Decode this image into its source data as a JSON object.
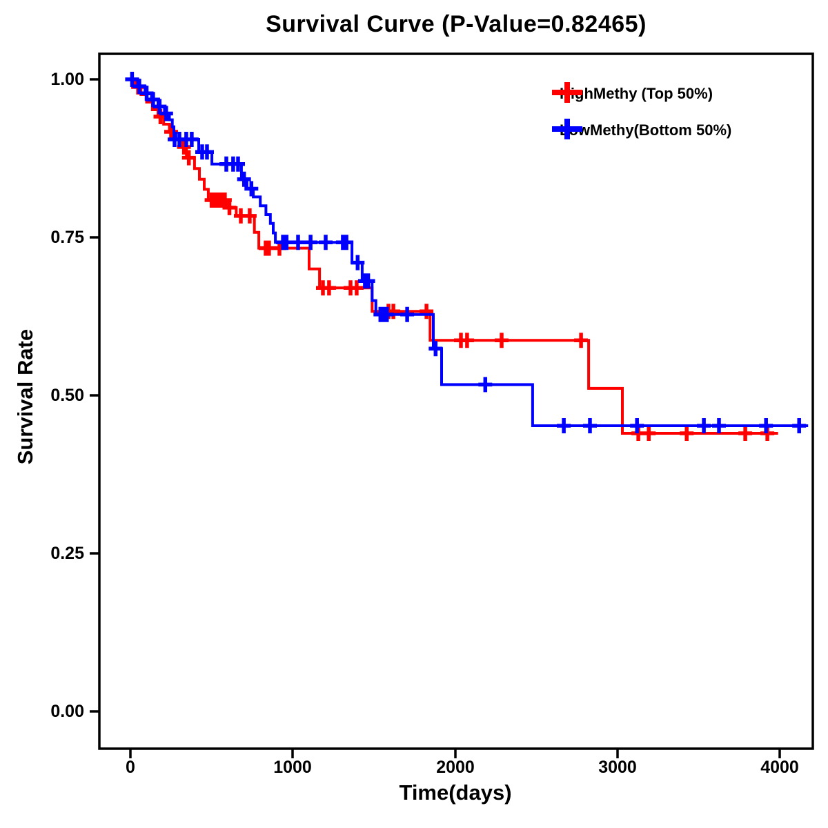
{
  "chart_data": {
    "type": "line",
    "subtype": "kaplan-meier-survival-step",
    "title": "Survival Curve (P-Value=0.82465)",
    "p_value_shown": "0.82465",
    "xlabel": "Time(days)",
    "ylabel": "Survival Rate",
    "grid": false,
    "background_color": "#ffffff",
    "axis_color": "#000000",
    "xlim": [
      -190,
      4205
    ],
    "ylim": [
      -0.06,
      1.04
    ],
    "xticks": [
      {
        "value": 0,
        "label": "0"
      },
      {
        "value": 1000,
        "label": "1000"
      },
      {
        "value": 2000,
        "label": "2000"
      },
      {
        "value": 3000,
        "label": "3000"
      },
      {
        "value": 4000,
        "label": "4000"
      }
    ],
    "yticks": [
      {
        "value": 1.0,
        "label": "1.00"
      },
      {
        "value": 0.75,
        "label": "0.75"
      },
      {
        "value": 0.5,
        "label": "0.50"
      },
      {
        "value": 0.25,
        "label": "0.25"
      },
      {
        "value": 0.0,
        "label": "0.00"
      }
    ],
    "legend": {
      "position": "top-right",
      "items": [
        {
          "label": "HighMethy (Top 50%)",
          "color": "#ff0000",
          "marker": "plus"
        },
        {
          "label": "LowMethy(Bottom 50%)",
          "color": "#0000ff",
          "marker": "plus"
        }
      ]
    },
    "series": [
      {
        "name": "HighMethy (Top 50%)",
        "color": "#ff0000",
        "steps": [
          [
            0,
            1.0
          ],
          [
            30,
            0.988
          ],
          [
            65,
            0.976
          ],
          [
            100,
            0.964
          ],
          [
            135,
            0.952
          ],
          [
            170,
            0.941
          ],
          [
            205,
            0.929
          ],
          [
            240,
            0.917
          ],
          [
            275,
            0.905
          ],
          [
            310,
            0.893
          ],
          [
            345,
            0.876
          ],
          [
            395,
            0.859
          ],
          [
            425,
            0.842
          ],
          [
            455,
            0.826
          ],
          [
            480,
            0.809
          ],
          [
            597,
            0.797
          ],
          [
            652,
            0.784
          ],
          [
            764,
            0.758
          ],
          [
            791,
            0.733
          ],
          [
            1101,
            0.7
          ],
          [
            1165,
            0.67
          ],
          [
            1489,
            0.633
          ],
          [
            1846,
            0.587
          ],
          [
            2823,
            0.511
          ],
          [
            3031,
            0.44
          ]
        ],
        "end_time": 3990,
        "censors": [
          [
            47,
            0.988
          ],
          [
            185,
            0.941
          ],
          [
            251,
            0.917
          ],
          [
            330,
            0.893
          ],
          [
            360,
            0.876
          ],
          [
            500,
            0.809
          ],
          [
            521,
            0.809
          ],
          [
            542,
            0.809
          ],
          [
            562,
            0.809
          ],
          [
            582,
            0.809
          ],
          [
            610,
            0.797
          ],
          [
            680,
            0.784
          ],
          [
            735,
            0.784
          ],
          [
            833,
            0.733
          ],
          [
            854,
            0.733
          ],
          [
            918,
            0.733
          ],
          [
            1186,
            0.67
          ],
          [
            1224,
            0.67
          ],
          [
            1356,
            0.67
          ],
          [
            1394,
            0.67
          ],
          [
            1590,
            0.633
          ],
          [
            1620,
            0.633
          ],
          [
            1824,
            0.633
          ],
          [
            2036,
            0.587
          ],
          [
            2074,
            0.587
          ],
          [
            2287,
            0.587
          ],
          [
            2776,
            0.587
          ],
          [
            3129,
            0.44
          ],
          [
            3193,
            0.44
          ],
          [
            3427,
            0.44
          ],
          [
            3788,
            0.44
          ],
          [
            3924,
            0.44
          ]
        ]
      },
      {
        "name": "LowMethy(Bottom 50%)",
        "color": "#0000ff",
        "steps": [
          [
            0,
            1.0
          ],
          [
            45,
            0.989
          ],
          [
            90,
            0.978
          ],
          [
            130,
            0.968
          ],
          [
            170,
            0.957
          ],
          [
            210,
            0.946
          ],
          [
            240,
            0.936
          ],
          [
            258,
            0.925
          ],
          [
            268,
            0.915
          ],
          [
            280,
            0.905
          ],
          [
            421,
            0.885
          ],
          [
            502,
            0.866
          ],
          [
            684,
            0.842
          ],
          [
            718,
            0.827
          ],
          [
            757,
            0.814
          ],
          [
            800,
            0.8
          ],
          [
            835,
            0.786
          ],
          [
            862,
            0.772
          ],
          [
            880,
            0.757
          ],
          [
            893,
            0.742
          ],
          [
            1365,
            0.71
          ],
          [
            1428,
            0.681
          ],
          [
            1489,
            0.65
          ],
          [
            1512,
            0.628
          ],
          [
            1866,
            0.574
          ],
          [
            1917,
            0.517
          ],
          [
            2478,
            0.452
          ]
        ],
        "end_time": 4175,
        "censors": [
          [
            10,
            1.0
          ],
          [
            55,
            0.989
          ],
          [
            100,
            0.978
          ],
          [
            140,
            0.968
          ],
          [
            180,
            0.957
          ],
          [
            220,
            0.946
          ],
          [
            272,
            0.905
          ],
          [
            302,
            0.905
          ],
          [
            344,
            0.905
          ],
          [
            378,
            0.905
          ],
          [
            442,
            0.885
          ],
          [
            472,
            0.885
          ],
          [
            591,
            0.866
          ],
          [
            633,
            0.866
          ],
          [
            663,
            0.866
          ],
          [
            700,
            0.842
          ],
          [
            745,
            0.827
          ],
          [
            940,
            0.742
          ],
          [
            962,
            0.742
          ],
          [
            1033,
            0.742
          ],
          [
            1110,
            0.742
          ],
          [
            1203,
            0.742
          ],
          [
            1309,
            0.742
          ],
          [
            1331,
            0.742
          ],
          [
            1400,
            0.71
          ],
          [
            1445,
            0.681
          ],
          [
            1465,
            0.681
          ],
          [
            1540,
            0.628
          ],
          [
            1560,
            0.628
          ],
          [
            1580,
            0.628
          ],
          [
            1705,
            0.628
          ],
          [
            1880,
            0.574
          ],
          [
            2186,
            0.517
          ],
          [
            2670,
            0.452
          ],
          [
            2831,
            0.452
          ],
          [
            3121,
            0.452
          ],
          [
            3533,
            0.452
          ],
          [
            3626,
            0.452
          ],
          [
            3916,
            0.452
          ],
          [
            4120,
            0.452
          ]
        ]
      }
    ]
  }
}
